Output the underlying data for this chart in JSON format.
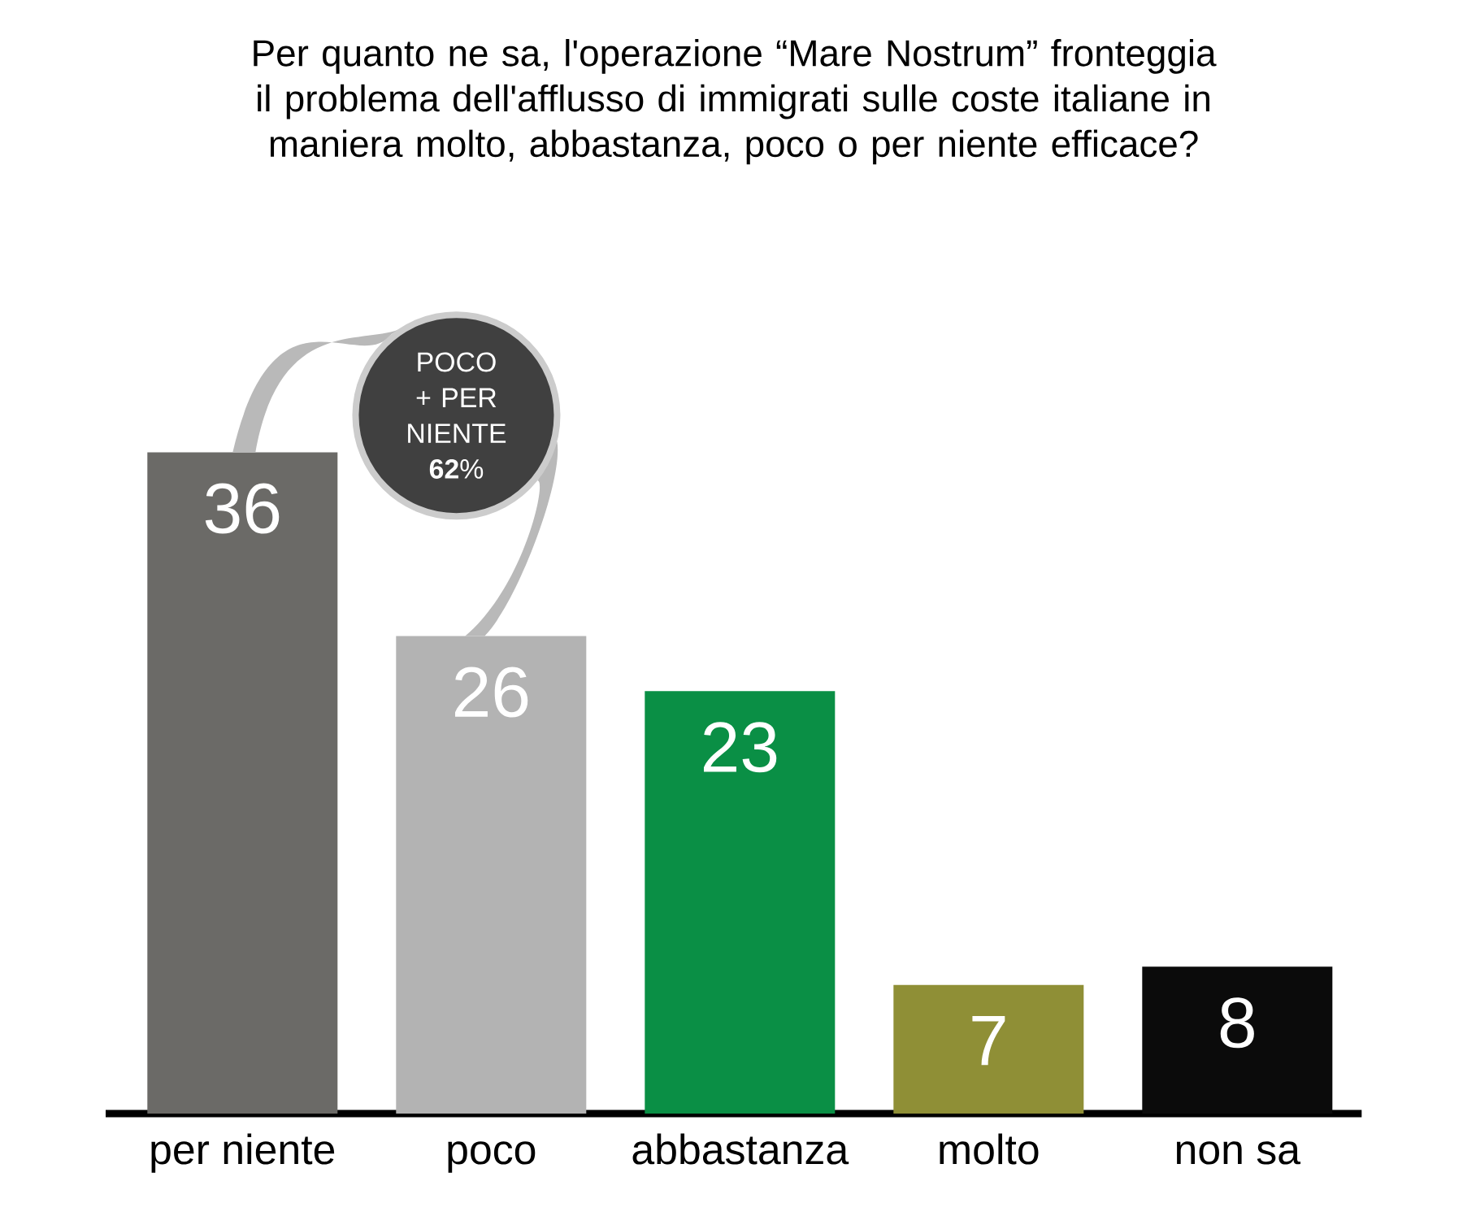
{
  "chart_data": {
    "type": "bar",
    "title": "Per quanto ne sa, l'operazione “Mare Nostrum” fronteggia il problema dell'afflusso di immigrati sulle coste italiane in maniera molto, abbastanza, poco o per niente efficace?",
    "categories": [
      "per niente",
      "poco",
      "abbastanza",
      "molto",
      "non sa"
    ],
    "values": [
      36,
      26,
      23,
      7,
      8
    ],
    "colors": [
      "#6b6a67",
      "#b3b3b3",
      "#0a8f45",
      "#8f8f36",
      "#0b0b0b"
    ],
    "data_labels": true,
    "annotations": [
      "POCO + PER NIENTE **62**%"
    ]
  }
}
